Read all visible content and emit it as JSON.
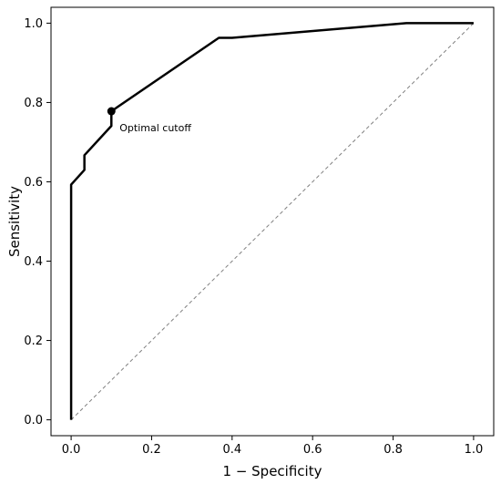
{
  "chart_data": {
    "type": "line",
    "title": "",
    "xlabel": "1 − Specificity",
    "ylabel": "Sensitivity",
    "xlim": [
      -0.05,
      1.05
    ],
    "ylim": [
      -0.04,
      1.04
    ],
    "xticks": [
      "0.0",
      "0.2",
      "0.4",
      "0.6",
      "0.8",
      "1.0"
    ],
    "yticks": [
      "0.0",
      "0.2",
      "0.4",
      "0.6",
      "0.8",
      "1.0"
    ],
    "grid": false,
    "series": [
      {
        "line_color": "#000000",
        "points": [
          [
            0.0,
            0.0
          ],
          [
            0.0,
            0.593
          ],
          [
            0.033,
            0.63
          ],
          [
            0.033,
            0.667
          ],
          [
            0.1,
            0.741
          ],
          [
            0.1,
            0.778
          ],
          [
            0.367,
            0.963
          ],
          [
            0.4,
            0.963
          ],
          [
            0.833,
            1.0
          ],
          [
            1.0,
            1.0
          ]
        ]
      }
    ],
    "reference_line": {
      "points": [
        [
          0.0,
          0.0
        ],
        [
          1.0,
          1.0
        ]
      ],
      "style": "dashed",
      "line_color": "#808080"
    },
    "optimal_point": {
      "label": "Optimal cutoff",
      "x": 0.1,
      "y": 0.778
    }
  }
}
